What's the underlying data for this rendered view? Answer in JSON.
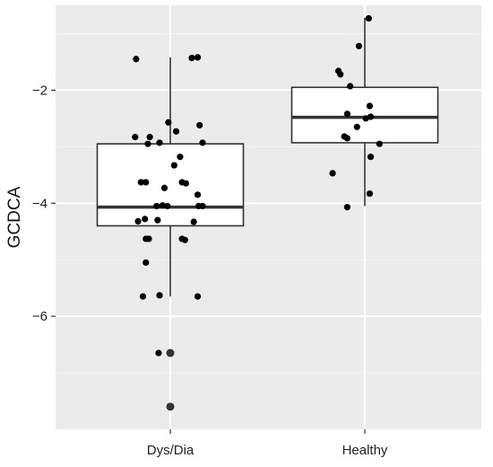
{
  "chart_data": {
    "type": "boxplot",
    "title": "",
    "xlabel": "",
    "ylabel": "GCDCA",
    "ylim": [
      -8.0,
      -0.5
    ],
    "yticks": [
      -2,
      -4,
      -6
    ],
    "ytick_labels": [
      "−2",
      "−4",
      "−6"
    ],
    "grid": true,
    "legend": "none",
    "categories": [
      "Dys/Dia",
      "Healthy"
    ],
    "boxes": [
      {
        "category": "Dys/Dia",
        "whisker_low": -5.65,
        "q1": -4.4,
        "median": -4.07,
        "q3": -2.95,
        "whisker_high": -1.42,
        "outliers": [
          -6.65,
          -7.6
        ]
      },
      {
        "category": "Healthy",
        "whisker_low": -4.05,
        "q1": -2.93,
        "median": -2.48,
        "q3": -1.95,
        "whisker_high": -0.72,
        "outliers": []
      }
    ],
    "points": [
      {
        "group": "Dys/Dia",
        "x": -0.35,
        "y": -1.45
      },
      {
        "group": "Dys/Dia",
        "x": 0.22,
        "y": -1.43
      },
      {
        "group": "Dys/Dia",
        "x": 0.28,
        "y": -1.42
      },
      {
        "group": "Dys/Dia",
        "x": -0.02,
        "y": -2.57
      },
      {
        "group": "Dys/Dia",
        "x": 0.3,
        "y": -2.62
      },
      {
        "group": "Dys/Dia",
        "x": 0.06,
        "y": -2.73
      },
      {
        "group": "Dys/Dia",
        "x": -0.36,
        "y": -2.83
      },
      {
        "group": "Dys/Dia",
        "x": -0.21,
        "y": -2.83
      },
      {
        "group": "Dys/Dia",
        "x": -0.23,
        "y": -2.95
      },
      {
        "group": "Dys/Dia",
        "x": -0.11,
        "y": -2.93
      },
      {
        "group": "Dys/Dia",
        "x": 0.33,
        "y": -2.93
      },
      {
        "group": "Dys/Dia",
        "x": 0.1,
        "y": -3.18
      },
      {
        "group": "Dys/Dia",
        "x": 0.04,
        "y": -3.33
      },
      {
        "group": "Dys/Dia",
        "x": -0.3,
        "y": -3.63
      },
      {
        "group": "Dys/Dia",
        "x": -0.25,
        "y": -3.63
      },
      {
        "group": "Dys/Dia",
        "x": 0.12,
        "y": -3.63
      },
      {
        "group": "Dys/Dia",
        "x": 0.16,
        "y": -3.65
      },
      {
        "group": "Dys/Dia",
        "x": -0.06,
        "y": -3.73
      },
      {
        "group": "Dys/Dia",
        "x": 0.28,
        "y": -3.85
      },
      {
        "group": "Dys/Dia",
        "x": -0.14,
        "y": -4.05
      },
      {
        "group": "Dys/Dia",
        "x": -0.08,
        "y": -4.04
      },
      {
        "group": "Dys/Dia",
        "x": -0.03,
        "y": -4.05
      },
      {
        "group": "Dys/Dia",
        "x": 0.29,
        "y": -4.05
      },
      {
        "group": "Dys/Dia",
        "x": 0.33,
        "y": -4.05
      },
      {
        "group": "Dys/Dia",
        "x": -0.33,
        "y": -4.32
      },
      {
        "group": "Dys/Dia",
        "x": -0.26,
        "y": -4.28
      },
      {
        "group": "Dys/Dia",
        "x": -0.13,
        "y": -4.3
      },
      {
        "group": "Dys/Dia",
        "x": 0.24,
        "y": -4.33
      },
      {
        "group": "Dys/Dia",
        "x": -0.25,
        "y": -4.63
      },
      {
        "group": "Dys/Dia",
        "x": -0.22,
        "y": -4.63
      },
      {
        "group": "Dys/Dia",
        "x": 0.12,
        "y": -4.63
      },
      {
        "group": "Dys/Dia",
        "x": 0.15,
        "y": -4.65
      },
      {
        "group": "Dys/Dia",
        "x": -0.25,
        "y": -5.05
      },
      {
        "group": "Dys/Dia",
        "x": -0.28,
        "y": -5.65
      },
      {
        "group": "Dys/Dia",
        "x": -0.11,
        "y": -5.63
      },
      {
        "group": "Dys/Dia",
        "x": 0.28,
        "y": -5.65
      },
      {
        "group": "Dys/Dia",
        "x": -0.12,
        "y": -6.65
      },
      {
        "group": "Healthy",
        "x": 0.04,
        "y": -0.73
      },
      {
        "group": "Healthy",
        "x": -0.06,
        "y": -1.22
      },
      {
        "group": "Healthy",
        "x": -0.27,
        "y": -1.66
      },
      {
        "group": "Healthy",
        "x": -0.25,
        "y": -1.72
      },
      {
        "group": "Healthy",
        "x": -0.15,
        "y": -1.93
      },
      {
        "group": "Healthy",
        "x": 0.05,
        "y": -2.28
      },
      {
        "group": "Healthy",
        "x": -0.18,
        "y": -2.42
      },
      {
        "group": "Healthy",
        "x": 0.01,
        "y": -2.5
      },
      {
        "group": "Healthy",
        "x": 0.06,
        "y": -2.47
      },
      {
        "group": "Healthy",
        "x": -0.08,
        "y": -2.65
      },
      {
        "group": "Healthy",
        "x": -0.21,
        "y": -2.82
      },
      {
        "group": "Healthy",
        "x": -0.18,
        "y": -2.85
      },
      {
        "group": "Healthy",
        "x": 0.15,
        "y": -2.95
      },
      {
        "group": "Healthy",
        "x": 0.06,
        "y": -3.18
      },
      {
        "group": "Healthy",
        "x": -0.33,
        "y": -3.47
      },
      {
        "group": "Healthy",
        "x": 0.05,
        "y": -3.83
      },
      {
        "group": "Healthy",
        "x": -0.18,
        "y": -4.07
      }
    ],
    "colors": {
      "panel": "#ebebeb",
      "grid_major": "#ffffff",
      "grid_minor": "#f5f5f5",
      "box_fill": "#ffffff",
      "box_stroke": "#333333",
      "point": "#000000",
      "outlier": "#333333"
    }
  }
}
